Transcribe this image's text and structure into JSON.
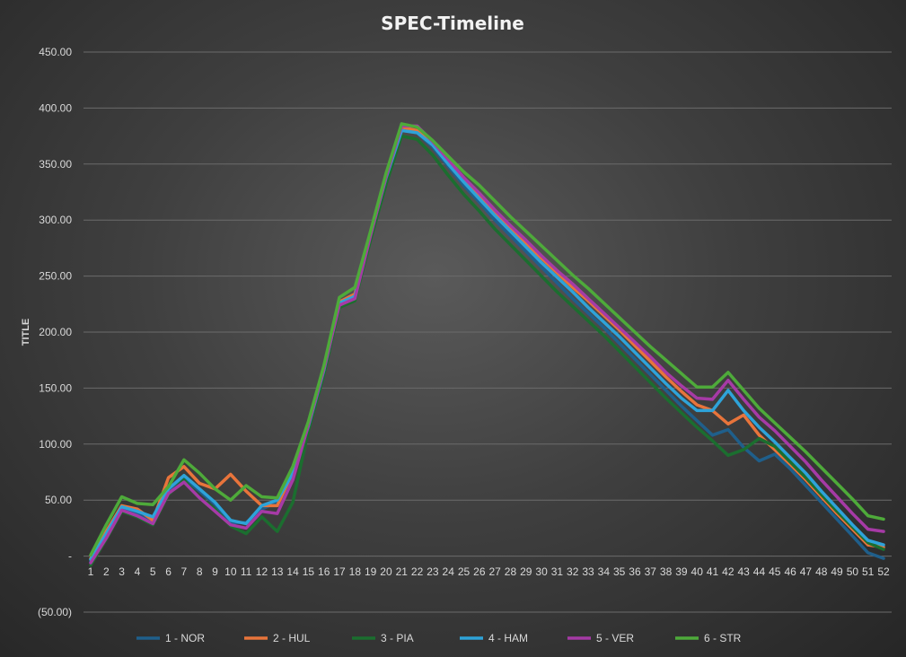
{
  "chart_data": {
    "type": "line",
    "title": "SPEC-Timeline",
    "xlabel": "",
    "ylabel": "TITLE",
    "ylim": [
      -50,
      450
    ],
    "ytick_labels": [
      "(50.00)",
      "-",
      "50.00",
      "100.00",
      "150.00",
      "200.00",
      "250.00",
      "300.00",
      "350.00",
      "400.00",
      "450.00"
    ],
    "ytick_values": [
      -50,
      0,
      50,
      100,
      150,
      200,
      250,
      300,
      350,
      400,
      450
    ],
    "categories": [
      "1",
      "2",
      "3",
      "4",
      "5",
      "6",
      "7",
      "8",
      "9",
      "10",
      "11",
      "12",
      "13",
      "14",
      "15",
      "16",
      "17",
      "18",
      "19",
      "20",
      "21",
      "22",
      "23",
      "24",
      "25",
      "26",
      "27",
      "28",
      "29",
      "30",
      "31",
      "32",
      "33",
      "34",
      "35",
      "36",
      "37",
      "38",
      "39",
      "40",
      "41",
      "42",
      "43",
      "44",
      "45",
      "46",
      "47",
      "48",
      "49",
      "50",
      "51",
      "52"
    ],
    "grid": true,
    "legend_position": "bottom",
    "series": [
      {
        "name": "1 - NOR",
        "color": "#1f5f8b",
        "values": [
          -5,
          18,
          42,
          38,
          30,
          58,
          70,
          58,
          46,
          30,
          30,
          42,
          48,
          72,
          115,
          165,
          225,
          230,
          285,
          335,
          380,
          378,
          365,
          348,
          331,
          316,
          300,
          286,
          272,
          258,
          244,
          230,
          217,
          204,
          190,
          176,
          162,
          148,
          134,
          121,
          108,
          113,
          97,
          85,
          91,
          78,
          63,
          48,
          33,
          18,
          3,
          -2
        ]
      },
      {
        "name": "2 - HUL",
        "color": "#e8743b",
        "values": [
          -2,
          22,
          45,
          42,
          32,
          70,
          80,
          65,
          60,
          73,
          58,
          45,
          45,
          75,
          118,
          168,
          227,
          234,
          288,
          340,
          383,
          380,
          368,
          352,
          336,
          322,
          306,
          292,
          279,
          266,
          253,
          240,
          228,
          215,
          202,
          188,
          174,
          160,
          147,
          135,
          130,
          118,
          126,
          108,
          95,
          82,
          68,
          53,
          38,
          24,
          10,
          8
        ]
      },
      {
        "name": "3 - PIA",
        "color": "#1b6e2f",
        "values": [
          -8,
          15,
          40,
          35,
          28,
          55,
          68,
          52,
          42,
          27,
          20,
          35,
          22,
          48,
          112,
          162,
          222,
          228,
          282,
          332,
          375,
          372,
          358,
          340,
          323,
          308,
          292,
          278,
          264,
          250,
          236,
          223,
          210,
          197,
          183,
          169,
          155,
          141,
          128,
          115,
          103,
          90,
          95,
          105,
          98,
          84,
          70,
          55,
          40,
          26,
          12,
          6
        ]
      },
      {
        "name": "4 - HAM",
        "color": "#2ea3d9",
        "values": [
          -3,
          20,
          44,
          40,
          35,
          60,
          72,
          60,
          48,
          32,
          29,
          45,
          50,
          74,
          116,
          166,
          226,
          232,
          287,
          338,
          380,
          378,
          367,
          350,
          334,
          319,
          304,
          290,
          276,
          262,
          249,
          236,
          222,
          209,
          196,
          182,
          168,
          154,
          141,
          130,
          130,
          148,
          130,
          115,
          102,
          88,
          74,
          58,
          43,
          28,
          14,
          10
        ]
      },
      {
        "name": "5 - VER",
        "color": "#a63aa6",
        "values": [
          -6,
          16,
          41,
          36,
          29,
          56,
          66,
          52,
          40,
          28,
          25,
          40,
          38,
          68,
          117,
          167,
          224,
          230,
          286,
          339,
          384,
          384,
          370,
          354,
          338,
          324,
          309,
          295,
          282,
          268,
          255,
          243,
          230,
          217,
          204,
          191,
          178,
          164,
          152,
          141,
          140,
          157,
          140,
          124,
          112,
          98,
          84,
          68,
          53,
          38,
          24,
          22
        ]
      },
      {
        "name": "6 - STR",
        "color": "#4eaa3a",
        "values": [
          1,
          28,
          53,
          47,
          46,
          62,
          86,
          74,
          60,
          50,
          63,
          53,
          52,
          80,
          120,
          170,
          231,
          240,
          290,
          342,
          386,
          383,
          371,
          357,
          343,
          331,
          317,
          303,
          290,
          277,
          264,
          251,
          239,
          226,
          213,
          200,
          187,
          175,
          163,
          151,
          151,
          164,
          148,
          132,
          119,
          106,
          93,
          79,
          65,
          51,
          36,
          33
        ]
      }
    ]
  }
}
